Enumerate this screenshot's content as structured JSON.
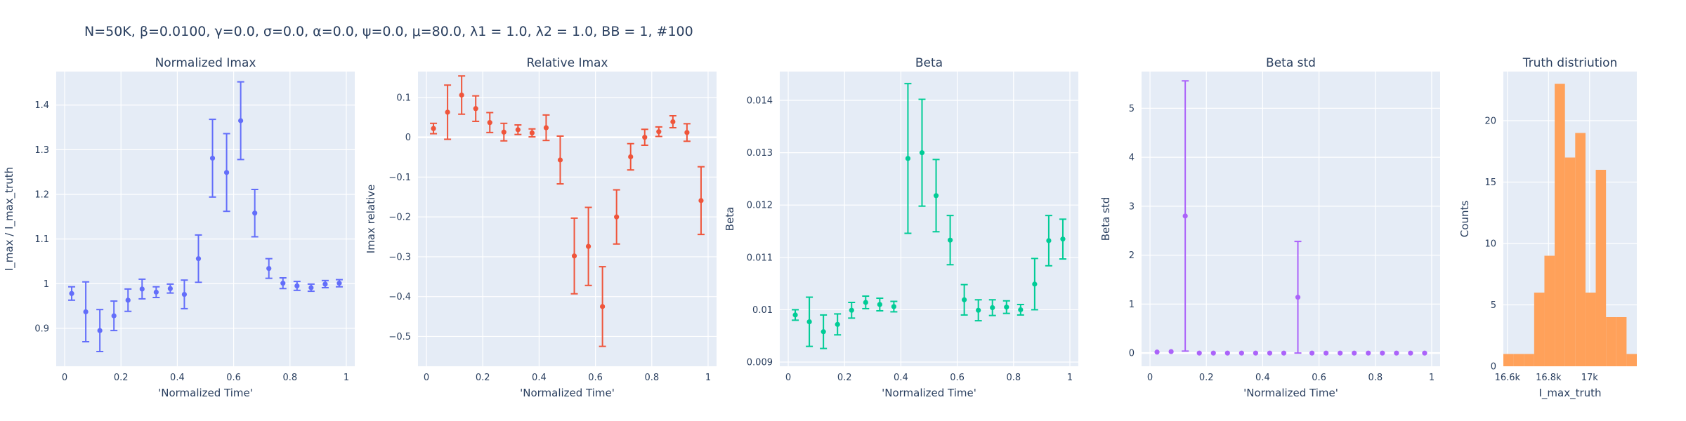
{
  "figure": {
    "title": "N=50K, β=0.0100, γ=0.0, σ=0.0,  α=0.0, ψ=0.0, μ=80.0, λ1 = 1.0, λ2 = 1.0, BB = 1, #100"
  },
  "chart_data": [
    {
      "type": "scatter",
      "title": "Normalized Imax",
      "xlabel": "'Normalized Time'",
      "ylabel": "I_max / I_max_truth",
      "color": "#636efa",
      "xlim": [
        -0.03,
        1.03
      ],
      "ylim": [
        0.815,
        1.475
      ],
      "xticks": [
        0,
        0.2,
        0.4,
        0.6,
        0.8,
        1
      ],
      "xtick_labels": [
        "0",
        "0.2",
        "0.4",
        "0.6",
        "0.8",
        "1"
      ],
      "yticks": [
        0.9,
        1.0,
        1.1,
        1.2,
        1.3,
        1.4
      ],
      "ytick_labels": [
        "0.9",
        "1",
        "1.1",
        "1.2",
        "1.3",
        "1.4"
      ],
      "x": [
        0.025,
        0.075,
        0.125,
        0.175,
        0.225,
        0.275,
        0.325,
        0.375,
        0.425,
        0.475,
        0.525,
        0.575,
        0.625,
        0.675,
        0.725,
        0.775,
        0.825,
        0.875,
        0.925,
        0.975
      ],
      "y": [
        0.978,
        0.937,
        0.895,
        0.928,
        0.963,
        0.988,
        0.981,
        0.989,
        0.976,
        1.056,
        1.281,
        1.249,
        1.365,
        1.158,
        1.034,
        1.001,
        0.995,
        0.991,
        0.999,
        1.001
      ],
      "err": [
        0.015,
        0.067,
        0.047,
        0.033,
        0.025,
        0.022,
        0.012,
        0.01,
        0.032,
        0.053,
        0.087,
        0.087,
        0.087,
        0.053,
        0.022,
        0.012,
        0.01,
        0.008,
        0.008,
        0.008
      ]
    },
    {
      "type": "scatter",
      "title": "Relative Imax",
      "xlabel": "'Normalized Time'",
      "ylabel": "Imax relative",
      "color": "#ef553b",
      "xlim": [
        -0.03,
        1.03
      ],
      "ylim": [
        -0.575,
        0.165
      ],
      "xticks": [
        0,
        0.2,
        0.4,
        0.6,
        0.8,
        1
      ],
      "xtick_labels": [
        "0",
        "0.2",
        "0.4",
        "0.6",
        "0.8",
        "1"
      ],
      "yticks": [
        -0.5,
        -0.4,
        -0.3,
        -0.2,
        -0.1,
        0,
        0.1
      ],
      "ytick_labels": [
        "−0.5",
        "−0.4",
        "−0.3",
        "−0.2",
        "−0.1",
        "0",
        "0.1"
      ],
      "x": [
        0.025,
        0.075,
        0.125,
        0.175,
        0.225,
        0.275,
        0.325,
        0.375,
        0.425,
        0.475,
        0.525,
        0.575,
        0.625,
        0.675,
        0.725,
        0.775,
        0.825,
        0.875,
        0.925,
        0.975
      ],
      "y": [
        0.022,
        0.063,
        0.106,
        0.072,
        0.037,
        0.013,
        0.019,
        0.011,
        0.024,
        -0.057,
        -0.298,
        -0.274,
        -0.425,
        -0.2,
        -0.049,
        0.0,
        0.014,
        0.039,
        0.012,
        -0.159
      ],
      "err": [
        0.013,
        0.068,
        0.048,
        0.032,
        0.025,
        0.022,
        0.012,
        0.01,
        0.032,
        0.06,
        0.095,
        0.098,
        0.1,
        0.068,
        0.033,
        0.02,
        0.012,
        0.015,
        0.022,
        0.085
      ]
    },
    {
      "type": "scatter",
      "title": "Beta",
      "xlabel": "'Normalized Time'",
      "ylabel": "Beta",
      "color": "#00cc96",
      "xlim": [
        -0.03,
        1.03
      ],
      "ylim": [
        0.00892,
        0.01455
      ],
      "xticks": [
        0,
        0.2,
        0.4,
        0.6,
        0.8,
        1
      ],
      "xtick_labels": [
        "0",
        "0.2",
        "0.4",
        "0.6",
        "0.8",
        "1"
      ],
      "yticks": [
        0.009,
        0.01,
        0.011,
        0.012,
        0.013,
        0.014
      ],
      "ytick_labels": [
        "0.009",
        "0.01",
        "0.011",
        "0.012",
        "0.013",
        "0.014"
      ],
      "x": [
        0.025,
        0.075,
        0.125,
        0.175,
        0.225,
        0.275,
        0.325,
        0.375,
        0.425,
        0.475,
        0.525,
        0.575,
        0.625,
        0.675,
        0.725,
        0.775,
        0.825,
        0.875,
        0.925,
        0.975
      ],
      "y": [
        0.0099,
        0.00977,
        0.00958,
        0.00972,
        0.00999,
        0.01014,
        0.0101,
        0.01006,
        0.01289,
        0.013,
        0.01218,
        0.01133,
        0.01019,
        0.00999,
        0.01004,
        0.01005,
        0.01,
        0.01049,
        0.01132,
        0.01135
      ],
      "err": [
        0.0001,
        0.00047,
        0.00032,
        0.0002,
        0.00015,
        0.00012,
        0.00012,
        0.0001,
        0.00143,
        0.00102,
        0.00069,
        0.00047,
        0.00029,
        0.0002,
        0.00015,
        0.00012,
        0.0001,
        0.00049,
        0.00048,
        0.00038
      ]
    },
    {
      "type": "scatter",
      "title": "Beta std",
      "xlabel": "'Normalized Time'",
      "ylabel": "Beta std",
      "color": "#ab63fa",
      "xlim": [
        -0.03,
        1.03
      ],
      "ylim": [
        -0.27,
        5.75
      ],
      "xticks": [
        0,
        0.2,
        0.4,
        0.6,
        0.8,
        1
      ],
      "xtick_labels": [
        "0",
        "0.2",
        "0.4",
        "0.6",
        "0.8",
        "1"
      ],
      "yticks": [
        0,
        1,
        2,
        3,
        4,
        5
      ],
      "ytick_labels": [
        "0",
        "1",
        "2",
        "3",
        "4",
        "5"
      ],
      "x": [
        0.025,
        0.075,
        0.125,
        0.175,
        0.225,
        0.275,
        0.325,
        0.375,
        0.425,
        0.475,
        0.525,
        0.575,
        0.625,
        0.675,
        0.725,
        0.775,
        0.825,
        0.875,
        0.925,
        0.975
      ],
      "y": [
        0.02,
        0.03,
        2.8,
        0.0,
        0.0,
        0.0,
        0.0,
        0.0,
        0.0,
        0.0,
        1.14,
        0.0,
        0.0,
        0.0,
        0.0,
        0.0,
        0.0,
        0.0,
        0.0,
        0.0
      ],
      "err": [
        0.0,
        0.0,
        2.76,
        0.0,
        0.0,
        0.0,
        0.0,
        0.0,
        0.0,
        0.0,
        1.14,
        0.0,
        0.0,
        0.0,
        0.0,
        0.0,
        0.0,
        0.0,
        0.0,
        0.0
      ]
    },
    {
      "type": "bar",
      "title": "Truth distriution",
      "xlabel": "I_max_truth",
      "ylabel": "Counts",
      "color": "#ffa15a",
      "xlim": [
        16580,
        17230
      ],
      "ylim": [
        0,
        24
      ],
      "xticks": [
        16600,
        16800,
        17000
      ],
      "xtick_labels": [
        "16.6k",
        "16.8k",
        "17k"
      ],
      "yticks": [
        0,
        5,
        10,
        15,
        20
      ],
      "ytick_labels": [
        "0",
        "5",
        "10",
        "15",
        "20"
      ],
      "bin_width": 50,
      "bin_starts": [
        16580,
        16630,
        16680,
        16730,
        16780,
        16830,
        16880,
        16930,
        16980,
        17030,
        17080,
        17130,
        17180
      ],
      "values": [
        1,
        1,
        1,
        6,
        9,
        23,
        17,
        19,
        6,
        16,
        4,
        4,
        1
      ]
    }
  ]
}
